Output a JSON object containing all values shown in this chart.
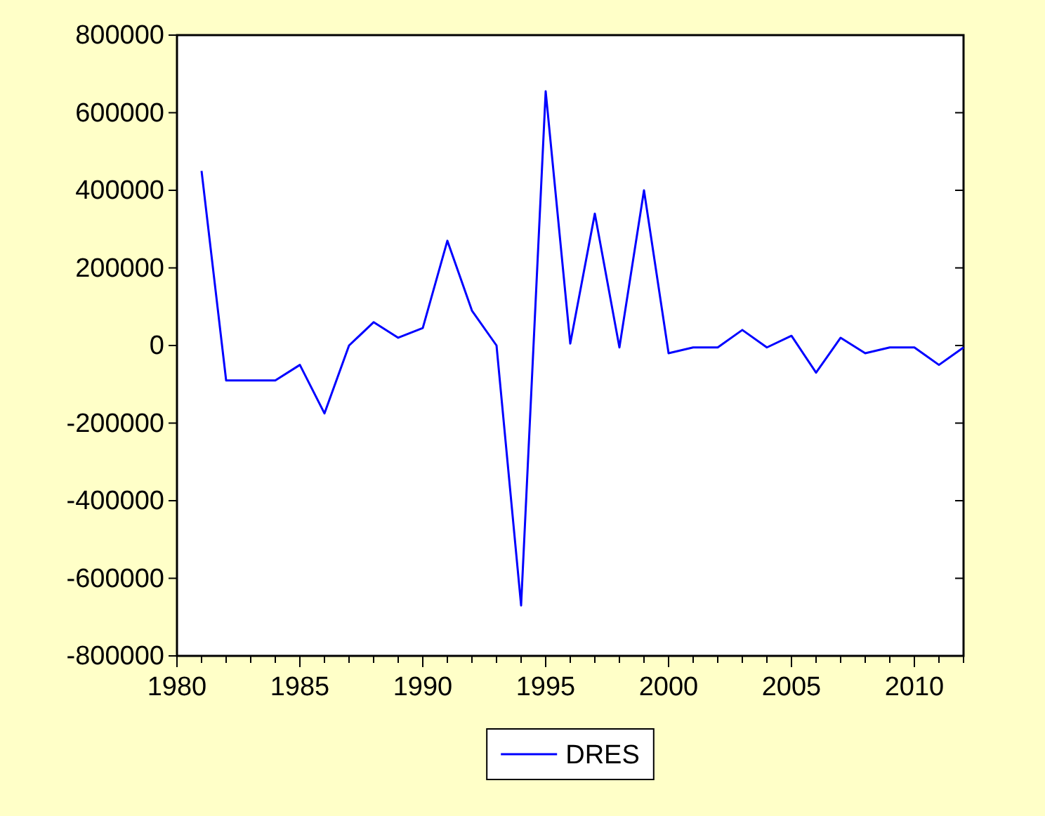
{
  "chart_data": {
    "type": "line",
    "x": [
      1981,
      1982,
      1983,
      1984,
      1985,
      1986,
      1987,
      1988,
      1989,
      1990,
      1991,
      1992,
      1993,
      1994,
      1995,
      1996,
      1997,
      1998,
      1999,
      2000,
      2001,
      2002,
      2003,
      2004,
      2005,
      2006,
      2007,
      2008,
      2009,
      2010,
      2011,
      2012
    ],
    "series": [
      {
        "name": "DRES",
        "color": "#0000ff",
        "values": [
          450000,
          -90000,
          -90000,
          -90000,
          -50000,
          -175000,
          0,
          60000,
          20000,
          45000,
          270000,
          90000,
          0,
          -670000,
          655000,
          5000,
          340000,
          -5000,
          400000,
          -20000,
          -5000,
          -5000,
          40000,
          -5000,
          25000,
          -70000,
          20000,
          -20000,
          -5000,
          -5000,
          -50000,
          -5000
        ]
      }
    ],
    "xlim": [
      1980,
      2012
    ],
    "xticks": [
      1980,
      {
        "value": 1981,
        "label": null
      },
      {
        "value": 1982,
        "label": null
      },
      {
        "value": 1983,
        "label": null
      },
      {
        "value": 1984,
        "label": null
      },
      1985,
      {
        "value": 1986,
        "label": null
      },
      {
        "value": 1987,
        "label": null
      },
      {
        "value": 1988,
        "label": null
      },
      {
        "value": 1989,
        "label": null
      },
      1990,
      {
        "value": 1991,
        "label": null
      },
      {
        "value": 1992,
        "label": null
      },
      {
        "value": 1993,
        "label": null
      },
      {
        "value": 1994,
        "label": null
      },
      1995,
      {
        "value": 1996,
        "label": null
      },
      {
        "value": 1997,
        "label": null
      },
      {
        "value": 1998,
        "label": null
      },
      {
        "value": 1999,
        "label": null
      },
      2000,
      {
        "value": 2001,
        "label": null
      },
      {
        "value": 2002,
        "label": null
      },
      {
        "value": 2003,
        "label": null
      },
      {
        "value": 2004,
        "label": null
      },
      2005,
      {
        "value": 2006,
        "label": null
      },
      {
        "value": 2007,
        "label": null
      },
      {
        "value": 2008,
        "label": null
      },
      {
        "value": 2009,
        "label": null
      },
      2010,
      {
        "value": 2011,
        "label": null
      },
      {
        "value": 2012,
        "label": null
      }
    ],
    "ylim": [
      -800000,
      800000
    ],
    "yticks": [
      -800000,
      -600000,
      -400000,
      -200000,
      0,
      200000,
      400000,
      600000,
      800000
    ],
    "grid": false,
    "legend": "bottom",
    "marker": "none",
    "line_style": "solid"
  }
}
